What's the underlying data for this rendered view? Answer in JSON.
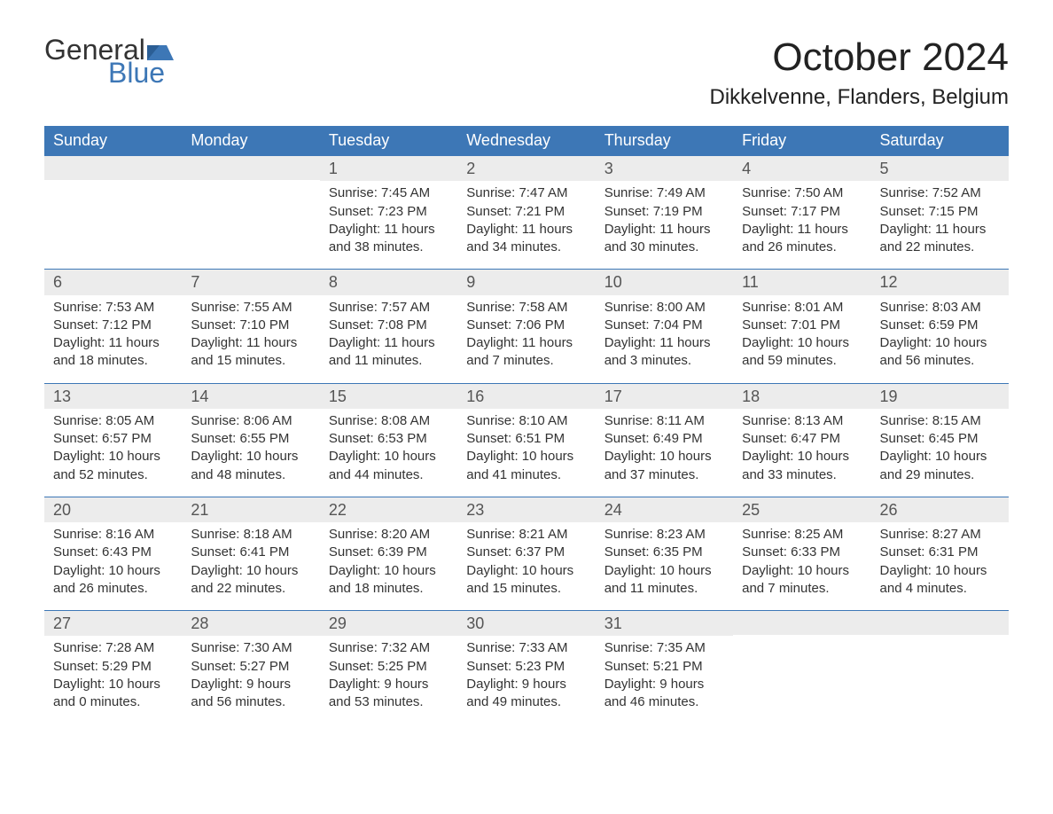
{
  "brand": {
    "word1": "General",
    "word2": "Blue",
    "accent_color": "#3d77b6",
    "text_color": "#333333"
  },
  "title": "October 2024",
  "location": "Dikkelvenne, Flanders, Belgium",
  "colors": {
    "header_bg": "#3d77b6",
    "header_text": "#ffffff",
    "daynum_bg": "#ececec",
    "cell_border_top": "#3d77b6",
    "body_text": "#333333",
    "page_bg": "#ffffff"
  },
  "fonts": {
    "title_size_pt": 33,
    "location_size_pt": 18,
    "header_size_pt": 14,
    "daynum_size_pt": 14,
    "body_size_pt": 11
  },
  "calendar": {
    "type": "table",
    "columns": [
      "Sunday",
      "Monday",
      "Tuesday",
      "Wednesday",
      "Thursday",
      "Friday",
      "Saturday"
    ],
    "first_weekday_index": 2,
    "weeks": [
      [
        null,
        null,
        {
          "day": 1,
          "sunrise": "7:45 AM",
          "sunset": "7:23 PM",
          "daylight": "11 hours and 38 minutes."
        },
        {
          "day": 2,
          "sunrise": "7:47 AM",
          "sunset": "7:21 PM",
          "daylight": "11 hours and 34 minutes."
        },
        {
          "day": 3,
          "sunrise": "7:49 AM",
          "sunset": "7:19 PM",
          "daylight": "11 hours and 30 minutes."
        },
        {
          "day": 4,
          "sunrise": "7:50 AM",
          "sunset": "7:17 PM",
          "daylight": "11 hours and 26 minutes."
        },
        {
          "day": 5,
          "sunrise": "7:52 AM",
          "sunset": "7:15 PM",
          "daylight": "11 hours and 22 minutes."
        }
      ],
      [
        {
          "day": 6,
          "sunrise": "7:53 AM",
          "sunset": "7:12 PM",
          "daylight": "11 hours and 18 minutes."
        },
        {
          "day": 7,
          "sunrise": "7:55 AM",
          "sunset": "7:10 PM",
          "daylight": "11 hours and 15 minutes."
        },
        {
          "day": 8,
          "sunrise": "7:57 AM",
          "sunset": "7:08 PM",
          "daylight": "11 hours and 11 minutes."
        },
        {
          "day": 9,
          "sunrise": "7:58 AM",
          "sunset": "7:06 PM",
          "daylight": "11 hours and 7 minutes."
        },
        {
          "day": 10,
          "sunrise": "8:00 AM",
          "sunset": "7:04 PM",
          "daylight": "11 hours and 3 minutes."
        },
        {
          "day": 11,
          "sunrise": "8:01 AM",
          "sunset": "7:01 PM",
          "daylight": "10 hours and 59 minutes."
        },
        {
          "day": 12,
          "sunrise": "8:03 AM",
          "sunset": "6:59 PM",
          "daylight": "10 hours and 56 minutes."
        }
      ],
      [
        {
          "day": 13,
          "sunrise": "8:05 AM",
          "sunset": "6:57 PM",
          "daylight": "10 hours and 52 minutes."
        },
        {
          "day": 14,
          "sunrise": "8:06 AM",
          "sunset": "6:55 PM",
          "daylight": "10 hours and 48 minutes."
        },
        {
          "day": 15,
          "sunrise": "8:08 AM",
          "sunset": "6:53 PM",
          "daylight": "10 hours and 44 minutes."
        },
        {
          "day": 16,
          "sunrise": "8:10 AM",
          "sunset": "6:51 PM",
          "daylight": "10 hours and 41 minutes."
        },
        {
          "day": 17,
          "sunrise": "8:11 AM",
          "sunset": "6:49 PM",
          "daylight": "10 hours and 37 minutes."
        },
        {
          "day": 18,
          "sunrise": "8:13 AM",
          "sunset": "6:47 PM",
          "daylight": "10 hours and 33 minutes."
        },
        {
          "day": 19,
          "sunrise": "8:15 AM",
          "sunset": "6:45 PM",
          "daylight": "10 hours and 29 minutes."
        }
      ],
      [
        {
          "day": 20,
          "sunrise": "8:16 AM",
          "sunset": "6:43 PM",
          "daylight": "10 hours and 26 minutes."
        },
        {
          "day": 21,
          "sunrise": "8:18 AM",
          "sunset": "6:41 PM",
          "daylight": "10 hours and 22 minutes."
        },
        {
          "day": 22,
          "sunrise": "8:20 AM",
          "sunset": "6:39 PM",
          "daylight": "10 hours and 18 minutes."
        },
        {
          "day": 23,
          "sunrise": "8:21 AM",
          "sunset": "6:37 PM",
          "daylight": "10 hours and 15 minutes."
        },
        {
          "day": 24,
          "sunrise": "8:23 AM",
          "sunset": "6:35 PM",
          "daylight": "10 hours and 11 minutes."
        },
        {
          "day": 25,
          "sunrise": "8:25 AM",
          "sunset": "6:33 PM",
          "daylight": "10 hours and 7 minutes."
        },
        {
          "day": 26,
          "sunrise": "8:27 AM",
          "sunset": "6:31 PM",
          "daylight": "10 hours and 4 minutes."
        }
      ],
      [
        {
          "day": 27,
          "sunrise": "7:28 AM",
          "sunset": "5:29 PM",
          "daylight": "10 hours and 0 minutes."
        },
        {
          "day": 28,
          "sunrise": "7:30 AM",
          "sunset": "5:27 PM",
          "daylight": "9 hours and 56 minutes."
        },
        {
          "day": 29,
          "sunrise": "7:32 AM",
          "sunset": "5:25 PM",
          "daylight": "9 hours and 53 minutes."
        },
        {
          "day": 30,
          "sunrise": "7:33 AM",
          "sunset": "5:23 PM",
          "daylight": "9 hours and 49 minutes."
        },
        {
          "day": 31,
          "sunrise": "7:35 AM",
          "sunset": "5:21 PM",
          "daylight": "9 hours and 46 minutes."
        },
        null,
        null
      ]
    ],
    "labels": {
      "sunrise_prefix": "Sunrise: ",
      "sunset_prefix": "Sunset: ",
      "daylight_prefix": "Daylight: "
    }
  }
}
